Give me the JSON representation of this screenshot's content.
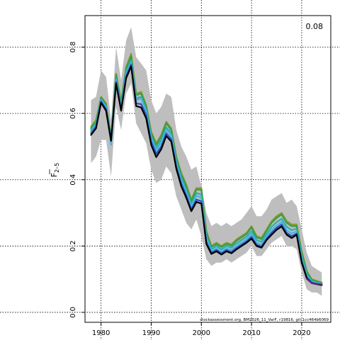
{
  "chart_data": {
    "type": "line",
    "title": "",
    "xlabel": "",
    "ylabel_main": "F",
    "ylabel_sub": "2–5",
    "corner_label": "0.08",
    "footer": "stockassessment.org, BM2026_11_VarF, r19816, git:1cc464b6069",
    "xlim": [
      1976.8,
      2025.8
    ],
    "ylim": [
      -0.03,
      0.895
    ],
    "x_ticks": [
      1980,
      1990,
      2000,
      2010,
      2020
    ],
    "y_ticks": [
      0.0,
      0.2,
      0.4,
      0.6,
      0.8
    ],
    "grid": true,
    "x": [
      1978,
      1979,
      1980,
      1981,
      1982,
      1983,
      1984,
      1985,
      1986,
      1987,
      1988,
      1989,
      1990,
      1991,
      1992,
      1993,
      1994,
      1995,
      1996,
      1997,
      1998,
      1999,
      2000,
      2001,
      2002,
      2003,
      2004,
      2005,
      2006,
      2007,
      2008,
      2009,
      2010,
      2011,
      2012,
      2013,
      2014,
      2015,
      2016,
      2017,
      2018,
      2019,
      2020,
      2021,
      2022,
      2023,
      2024
    ],
    "ci_upper": [
      0.64,
      0.65,
      0.73,
      0.71,
      0.58,
      0.8,
      0.7,
      0.82,
      0.86,
      0.77,
      0.75,
      0.73,
      0.64,
      0.6,
      0.62,
      0.66,
      0.65,
      0.55,
      0.5,
      0.47,
      0.43,
      0.44,
      0.38,
      0.3,
      0.26,
      0.27,
      0.26,
      0.27,
      0.26,
      0.27,
      0.28,
      0.3,
      0.32,
      0.29,
      0.29,
      0.31,
      0.34,
      0.35,
      0.36,
      0.33,
      0.34,
      0.32,
      0.25,
      0.18,
      0.14,
      0.13,
      0.12
    ],
    "ci_lower": [
      0.45,
      0.47,
      0.52,
      0.52,
      0.41,
      0.62,
      0.55,
      0.66,
      0.69,
      0.57,
      0.54,
      0.51,
      0.43,
      0.39,
      0.4,
      0.44,
      0.42,
      0.35,
      0.31,
      0.27,
      0.25,
      0.28,
      0.23,
      0.16,
      0.14,
      0.15,
      0.15,
      0.16,
      0.15,
      0.16,
      0.17,
      0.18,
      0.2,
      0.17,
      0.17,
      0.19,
      0.21,
      0.22,
      0.23,
      0.2,
      0.2,
      0.19,
      0.12,
      0.07,
      0.06,
      0.06,
      0.05
    ],
    "series": [
      {
        "color": "#8a9a2a",
        "values": [
          0.56,
          0.58,
          0.65,
          0.63,
          0.53,
          0.72,
          0.635,
          0.74,
          0.78,
          0.66,
          0.665,
          0.625,
          0.545,
          0.51,
          0.535,
          0.575,
          0.555,
          0.47,
          0.42,
          0.385,
          0.34,
          0.375,
          0.375,
          0.245,
          0.2,
          0.21,
          0.2,
          0.21,
          0.205,
          0.22,
          0.23,
          0.24,
          0.26,
          0.23,
          0.225,
          0.25,
          0.275,
          0.29,
          0.3,
          0.275,
          0.265,
          0.265,
          0.185,
          0.125,
          0.1,
          0.095,
          0.09
        ]
      },
      {
        "color": "#3a9a4a",
        "values": [
          0.555,
          0.575,
          0.647,
          0.627,
          0.527,
          0.715,
          0.632,
          0.735,
          0.772,
          0.655,
          0.66,
          0.62,
          0.54,
          0.505,
          0.53,
          0.57,
          0.55,
          0.465,
          0.415,
          0.38,
          0.335,
          0.37,
          0.37,
          0.24,
          0.197,
          0.206,
          0.197,
          0.206,
          0.201,
          0.216,
          0.226,
          0.236,
          0.256,
          0.226,
          0.221,
          0.246,
          0.27,
          0.285,
          0.295,
          0.27,
          0.26,
          0.26,
          0.18,
          0.122,
          0.098,
          0.093,
          0.088
        ]
      },
      {
        "color": "#2ab0a8",
        "values": [
          0.55,
          0.57,
          0.643,
          0.622,
          0.522,
          0.705,
          0.622,
          0.725,
          0.76,
          0.645,
          0.65,
          0.61,
          0.53,
          0.495,
          0.52,
          0.558,
          0.54,
          0.455,
          0.405,
          0.37,
          0.325,
          0.36,
          0.355,
          0.23,
          0.19,
          0.2,
          0.19,
          0.2,
          0.195,
          0.208,
          0.218,
          0.228,
          0.245,
          0.218,
          0.213,
          0.236,
          0.258,
          0.272,
          0.282,
          0.258,
          0.248,
          0.252,
          0.17,
          0.116,
          0.095,
          0.09,
          0.086
        ]
      },
      {
        "color": "#4ab4e8",
        "values": [
          0.545,
          0.565,
          0.64,
          0.618,
          0.505,
          0.7,
          0.618,
          0.72,
          0.755,
          0.64,
          0.645,
          0.605,
          0.525,
          0.488,
          0.512,
          0.55,
          0.532,
          0.448,
          0.398,
          0.362,
          0.318,
          0.352,
          0.345,
          0.222,
          0.183,
          0.193,
          0.183,
          0.193,
          0.188,
          0.2,
          0.21,
          0.22,
          0.236,
          0.21,
          0.205,
          0.228,
          0.248,
          0.262,
          0.272,
          0.248,
          0.238,
          0.244,
          0.162,
          0.11,
          0.092,
          0.088,
          0.085
        ]
      },
      {
        "color": "#2a50b8",
        "values": [
          0.54,
          0.56,
          0.636,
          0.613,
          0.52,
          0.695,
          0.612,
          0.712,
          0.748,
          0.63,
          0.628,
          0.595,
          0.515,
          0.478,
          0.5,
          0.54,
          0.522,
          0.44,
          0.388,
          0.352,
          0.31,
          0.34,
          0.335,
          0.212,
          0.18,
          0.188,
          0.178,
          0.188,
          0.182,
          0.194,
          0.204,
          0.214,
          0.228,
          0.204,
          0.199,
          0.222,
          0.24,
          0.255,
          0.265,
          0.24,
          0.23,
          0.238,
          0.155,
          0.106,
          0.09,
          0.086,
          0.083
        ]
      },
      {
        "color": "#000000",
        "values": [
          0.535,
          0.555,
          0.632,
          0.608,
          0.517,
          0.69,
          0.608,
          0.706,
          0.742,
          0.622,
          0.618,
          0.585,
          0.505,
          0.468,
          0.492,
          0.532,
          0.515,
          0.433,
          0.38,
          0.345,
          0.305,
          0.333,
          0.328,
          0.206,
          0.176,
          0.184,
          0.174,
          0.184,
          0.178,
          0.19,
          0.2,
          0.21,
          0.222,
          0.2,
          0.195,
          0.218,
          0.234,
          0.249,
          0.259,
          0.234,
          0.224,
          0.234,
          0.15,
          0.103,
          0.088,
          0.085,
          0.082
        ]
      },
      {
        "color": "#5a2a7a",
        "values": [
          null,
          null,
          null,
          null,
          null,
          null,
          null,
          null,
          null,
          null,
          null,
          null,
          null,
          null,
          null,
          null,
          null,
          null,
          null,
          null,
          null,
          null,
          null,
          null,
          null,
          null,
          null,
          null,
          null,
          null,
          null,
          null,
          null,
          null,
          null,
          null,
          null,
          null,
          null,
          null,
          null,
          null,
          null,
          0.101,
          0.088,
          0.086,
          0.084
        ]
      }
    ]
  }
}
